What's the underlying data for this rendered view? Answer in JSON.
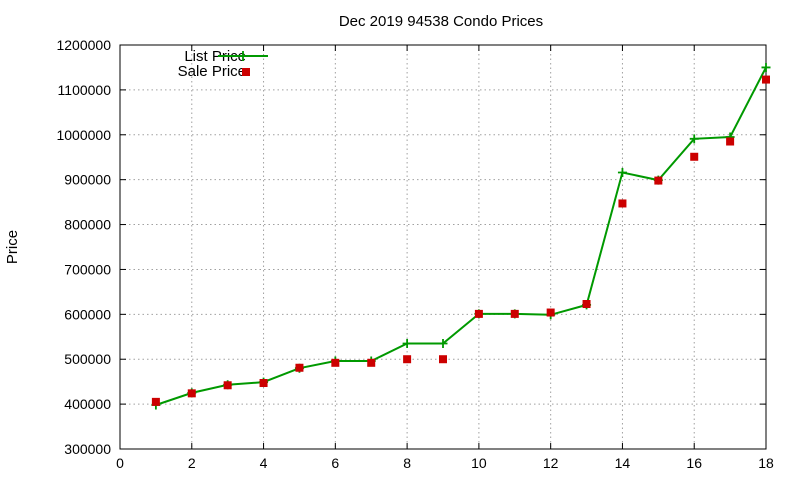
{
  "chart_data": {
    "type": "line",
    "title": "Dec 2019 94538 Condo Prices",
    "xlabel": "",
    "ylabel": "Price",
    "xlim": [
      0,
      18
    ],
    "ylim": [
      300000,
      1200000
    ],
    "xticks": [
      0,
      2,
      4,
      6,
      8,
      10,
      12,
      14,
      16,
      18
    ],
    "yticks": [
      300000,
      400000,
      500000,
      600000,
      700000,
      800000,
      900000,
      1000000,
      1100000,
      1200000
    ],
    "grid": true,
    "legend_position": "top-left",
    "series": [
      {
        "name": "List Price",
        "style": "line-with-plus-markers",
        "color": "#009900",
        "x": [
          1,
          2,
          3,
          4,
          5,
          6,
          7,
          8,
          9,
          10,
          11,
          12,
          13,
          14,
          15,
          16,
          17,
          18
        ],
        "values": [
          398000,
          425000,
          443000,
          449000,
          480000,
          496000,
          496000,
          535000,
          535000,
          601000,
          601000,
          599000,
          621000,
          916000,
          899000,
          991000,
          995000,
          1150000
        ]
      },
      {
        "name": "Sale Price",
        "style": "square-markers",
        "color": "#cc0000",
        "x": [
          1,
          2,
          3,
          4,
          5,
          6,
          7,
          8,
          9,
          10,
          11,
          12,
          13,
          14,
          15,
          16,
          17,
          18
        ],
        "values": [
          405000,
          424000,
          442000,
          447000,
          481000,
          492000,
          492000,
          500000,
          500000,
          601000,
          601000,
          604000,
          623000,
          847000,
          898000,
          951000,
          985000,
          1123000
        ]
      }
    ]
  }
}
